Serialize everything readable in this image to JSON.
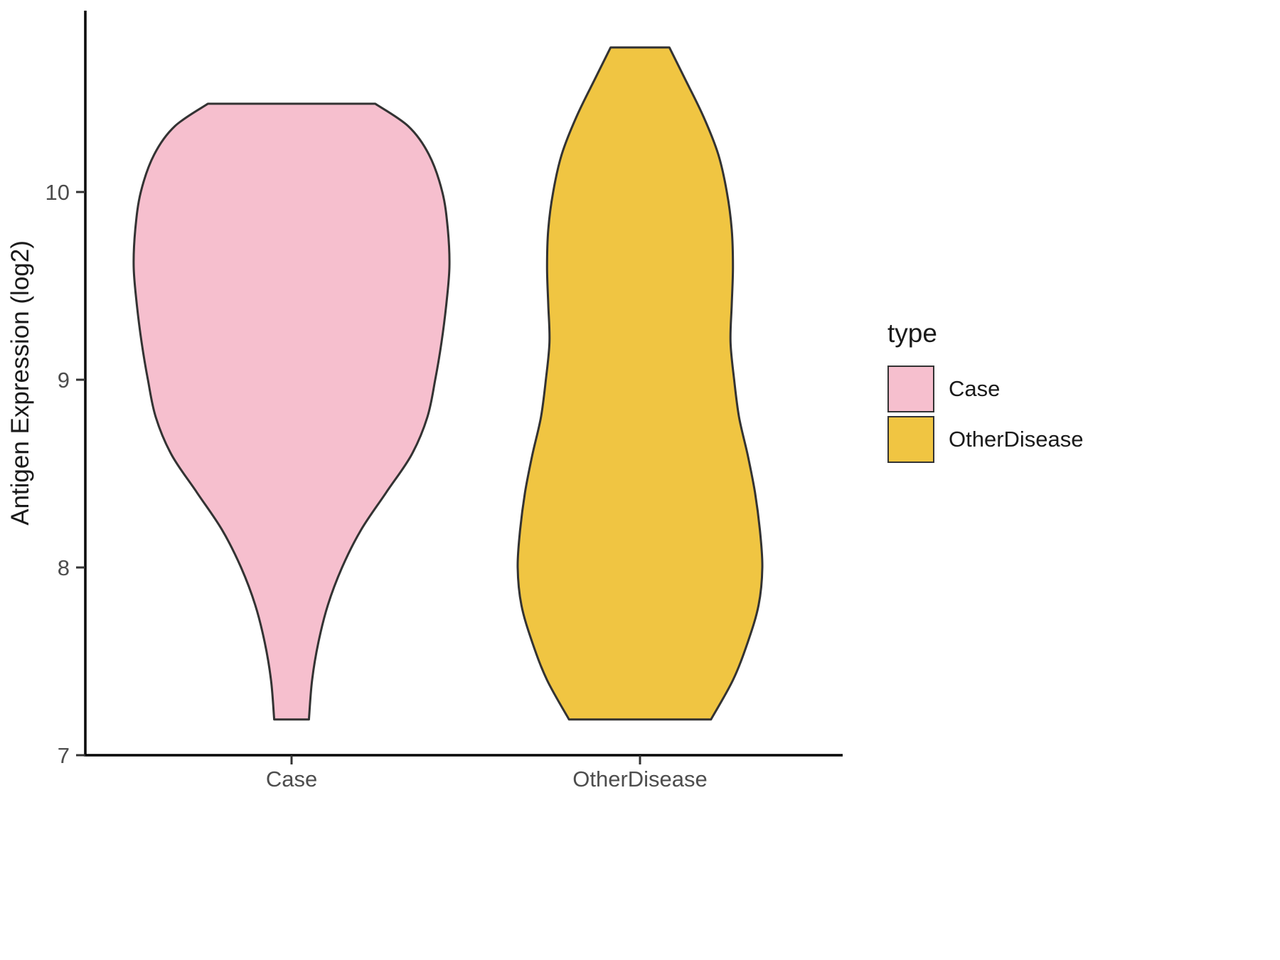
{
  "chart_data": {
    "type": "violin",
    "title": "",
    "xlabel": "",
    "ylabel": "Antigen Expression (log2)",
    "categories": [
      "Case",
      "OtherDisease"
    ],
    "yticks": [
      7,
      8,
      9,
      10
    ],
    "ylim": [
      7,
      10.97
    ],
    "grid": false,
    "legend": {
      "title": "type",
      "position": "right",
      "entries": [
        {
          "label": "Case",
          "color": "#F6BFCE"
        },
        {
          "label": "OtherDisease",
          "color": "#F0C542"
        }
      ]
    },
    "series": [
      {
        "name": "Case",
        "fill": "#F6BFCE",
        "outline": "#333333",
        "y_min": 7.19,
        "y_max": 10.47,
        "density_profile": [
          [
            10.47,
            0.53
          ],
          [
            10.35,
            0.74
          ],
          [
            10.2,
            0.87
          ],
          [
            10.0,
            0.955
          ],
          [
            9.8,
            0.99
          ],
          [
            9.6,
            1.0
          ],
          [
            9.4,
            0.98
          ],
          [
            9.2,
            0.95
          ],
          [
            9.0,
            0.91
          ],
          [
            8.8,
            0.86
          ],
          [
            8.6,
            0.76
          ],
          [
            8.4,
            0.6
          ],
          [
            8.2,
            0.44
          ],
          [
            8.0,
            0.32
          ],
          [
            7.8,
            0.23
          ],
          [
            7.6,
            0.17
          ],
          [
            7.4,
            0.13
          ],
          [
            7.19,
            0.11
          ]
        ]
      },
      {
        "name": "OtherDisease",
        "fill": "#F0C542",
        "outline": "#333333",
        "y_min": 7.19,
        "y_max": 10.77,
        "density_profile": [
          [
            10.77,
            0.24
          ],
          [
            10.6,
            0.37
          ],
          [
            10.4,
            0.52
          ],
          [
            10.2,
            0.64
          ],
          [
            10.0,
            0.71
          ],
          [
            9.8,
            0.75
          ],
          [
            9.6,
            0.76
          ],
          [
            9.4,
            0.75
          ],
          [
            9.2,
            0.74
          ],
          [
            9.0,
            0.77
          ],
          [
            8.8,
            0.81
          ],
          [
            8.6,
            0.88
          ],
          [
            8.4,
            0.94
          ],
          [
            8.2,
            0.98
          ],
          [
            8.0,
            1.0
          ],
          [
            7.8,
            0.97
          ],
          [
            7.6,
            0.88
          ],
          [
            7.4,
            0.76
          ],
          [
            7.19,
            0.58
          ]
        ]
      }
    ],
    "style": {
      "axis_color": "#000000",
      "tick_color": "#333333",
      "tick_label_color": "#4d4d4d",
      "axis_title_color": "#1a1a1a",
      "violin_stroke_width": 3
    }
  }
}
